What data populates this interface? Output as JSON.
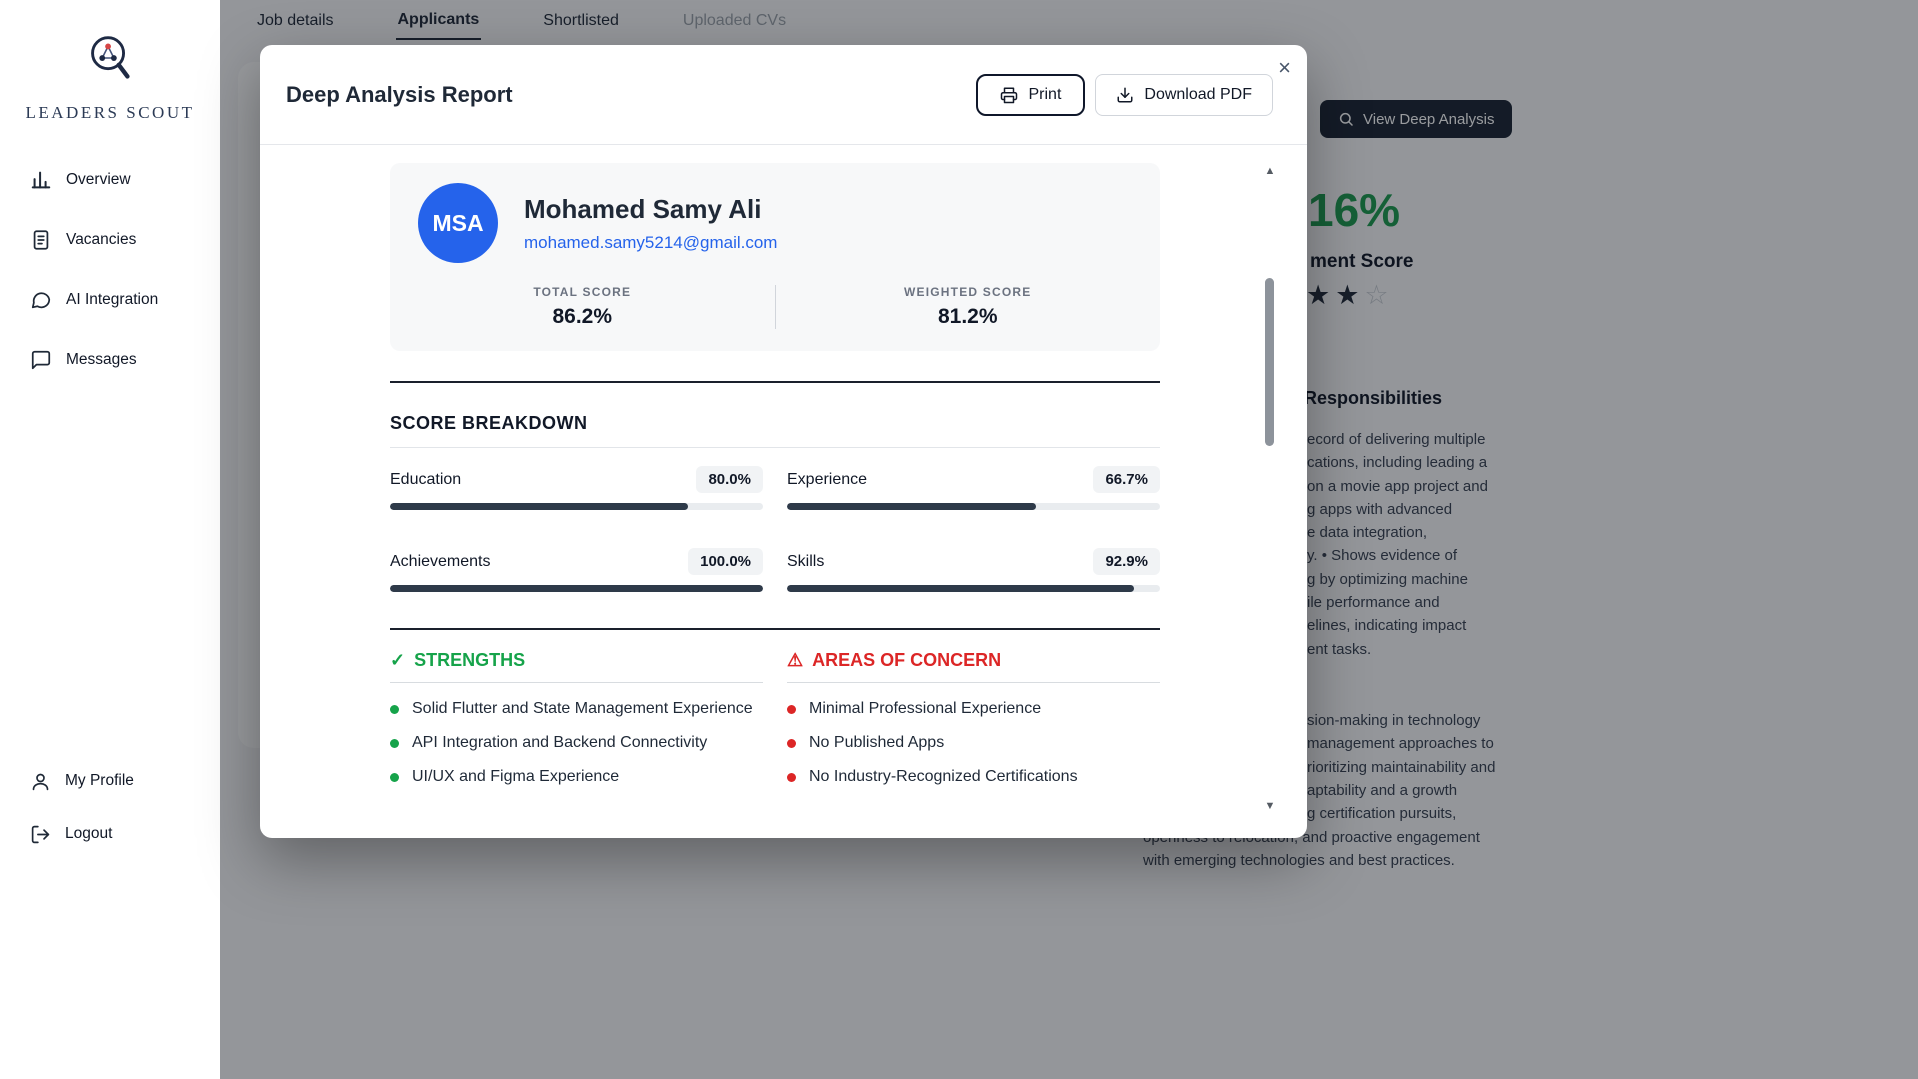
{
  "brand": {
    "name": "LEADERS SCOUT"
  },
  "icons": {
    "check": "✓",
    "warning": "⚠",
    "close": "×",
    "scrollbar_up": "▲",
    "scrollbar_down": "▼"
  },
  "sidebar": {
    "items": [
      {
        "label": "Overview"
      },
      {
        "label": "Vacancies"
      },
      {
        "label": "AI Integration"
      },
      {
        "label": "Messages"
      }
    ],
    "footer": [
      {
        "label": "My Profile"
      },
      {
        "label": "Logout"
      }
    ]
  },
  "tabs": {
    "items": [
      {
        "label": "Job details"
      },
      {
        "label": "Applicants"
      },
      {
        "label": "Shortlisted"
      },
      {
        "label": "Uploaded CVs"
      }
    ]
  },
  "background": {
    "view_deep_analysis": "View Deep Analysis",
    "alignment_score_value": "16%",
    "alignment_score_label": "ment Score",
    "stars_filled_glyphs": "★★",
    "stars_empty_glyph": "☆",
    "responsibilities_title": "Responsibilities",
    "paragraph1_lines": [
      "ecord of delivering multiple",
      "cations, including leading a",
      "on a movie app project and",
      "g apps with advanced",
      "e data integration,",
      "y. • Shows evidence of",
      "g by optimizing machine",
      "ile performance and",
      "elines, indicating impact",
      "ent tasks."
    ],
    "paragraph2_lines": [
      "sion-making in technology",
      "management approaches to",
      "rioritizing maintainability and",
      "aptability and a growth",
      "g certification pursuits,"
    ],
    "paragraph2_wide_lines": [
      "openness to relocation, and proactive engagement",
      "with emerging technologies and best practices."
    ]
  },
  "modal": {
    "title": "Deep Analysis Report",
    "actions": {
      "print": "Print",
      "download_pdf": "Download PDF"
    },
    "candidate": {
      "initials": "MSA",
      "name": "Mohamed Samy Ali",
      "email": "mohamed.samy5214@gmail.com"
    },
    "scores": {
      "total_label": "TOTAL SCORE",
      "total_value": "86.2%",
      "weighted_label": "WEIGHTED SCORE",
      "weighted_value": "81.2%"
    },
    "breakdown": {
      "title": "SCORE BREAKDOWN",
      "metrics": [
        {
          "label": "Education",
          "value": "80.0%",
          "pct": 80
        },
        {
          "label": "Experience",
          "value": "66.7%",
          "pct": 66.7
        },
        {
          "label": "Achievements",
          "value": "100.0%",
          "pct": 100
        },
        {
          "label": "Skills",
          "value": "92.9%",
          "pct": 92.9
        }
      ]
    },
    "strengths": {
      "title": "STRENGTHS",
      "items": [
        "Solid Flutter and State Management Experience",
        "API Integration and Backend Connectivity",
        "UI/UX and Figma Experience"
      ]
    },
    "concerns": {
      "title": "AREAS OF CONCERN",
      "items": [
        "Minimal Professional Experience",
        "No Published Apps",
        "No Industry-Recognized Certifications"
      ]
    }
  }
}
